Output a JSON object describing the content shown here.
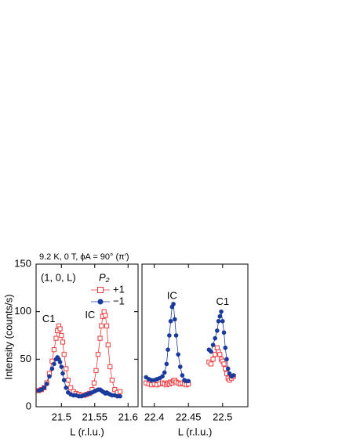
{
  "chart_data": [
    {
      "type": "line",
      "title": "9.2 K,  0 T,  ϕA = 90° (π′)",
      "ylabel": "Intensity  (counts/s)",
      "xlabel": "L  (r.l.u.)",
      "legend_title": "P₂",
      "legend": "upper right",
      "xlim": [
        21.462,
        21.615
      ],
      "xticks": [
        21.5,
        21.55,
        21.6
      ],
      "ylim": [
        0,
        150
      ],
      "yticks": [
        0,
        50,
        100,
        150
      ],
      "annotations": [
        {
          "text": "(1, 0, L)",
          "x": 21.469,
          "y": 135
        },
        {
          "text": "C1",
          "x": 21.481,
          "y": 92
        },
        {
          "text": "IC",
          "x": 21.543,
          "y": 96
        }
      ],
      "x": [
        21.466,
        21.47,
        21.474,
        21.478,
        21.482,
        21.486,
        21.489,
        21.492,
        21.494,
        21.496,
        21.498,
        21.5,
        21.502,
        21.504,
        21.507,
        21.51,
        21.514,
        21.518,
        21.522,
        21.526,
        21.53,
        21.534,
        21.538,
        21.542,
        21.546,
        21.549,
        21.552,
        21.555,
        21.558,
        21.56,
        21.562,
        21.564,
        21.566,
        21.568,
        21.57,
        21.573,
        21.576,
        21.58,
        21.584,
        21.588
      ],
      "series": [
        {
          "name": "+1",
          "color": "#e8393c",
          "marker": "open-square",
          "values": [
            17,
            18,
            20,
            25,
            35,
            48,
            60,
            72,
            80,
            85,
            82,
            75,
            68,
            55,
            40,
            28,
            20,
            16,
            14,
            13,
            12,
            12,
            13,
            14,
            18,
            25,
            38,
            55,
            72,
            85,
            95,
            100,
            96,
            85,
            65,
            42,
            28,
            18,
            15,
            16
          ]
        },
        {
          "name": "−1",
          "color": "#1a3a9c",
          "marker": "filled-circle",
          "values": [
            17,
            18,
            20,
            24,
            32,
            40,
            45,
            50,
            52,
            50,
            47,
            42,
            35,
            28,
            20,
            15,
            13,
            12,
            12,
            11,
            11,
            12,
            13,
            14,
            15,
            16,
            17,
            18,
            18,
            17,
            16,
            15,
            14,
            15,
            14,
            13,
            12,
            12,
            11,
            11
          ]
        }
      ]
    },
    {
      "type": "line",
      "xlabel": "L  (r.l.u.)",
      "xlim": [
        22.382,
        22.537
      ],
      "xticks": [
        22.4,
        22.45,
        22.5
      ],
      "ylim": [
        0,
        150
      ],
      "annotations": [
        {
          "text": "IC",
          "x": 22.426,
          "y": 116
        },
        {
          "text": "C1",
          "x": 22.5,
          "y": 110
        }
      ],
      "x": [
        22.388,
        22.392,
        22.396,
        22.4,
        22.404,
        22.408,
        22.412,
        22.415,
        22.418,
        22.42,
        22.422,
        22.424,
        22.426,
        22.428,
        22.43,
        22.432,
        22.435,
        22.438,
        22.441,
        22.444,
        22.447,
        22.45,
        22.465,
        22.48,
        22.483,
        22.486,
        22.489,
        22.492,
        22.494,
        22.496,
        22.498,
        22.5,
        22.502,
        22.504,
        22.506,
        22.508,
        22.51,
        22.513,
        22.516
      ],
      "series": [
        {
          "name": "+1",
          "color": "#e8393c",
          "marker": "open-square",
          "values": [
            25,
            24,
            23,
            24,
            23,
            24,
            25,
            24,
            23,
            25,
            24,
            26,
            25,
            27,
            28,
            26,
            25,
            24,
            25,
            24,
            23,
            24,
            null,
            47,
            45,
            50,
            55,
            62,
            58,
            55,
            50,
            48,
            45,
            40,
            35,
            30,
            28,
            30,
            32
          ]
        },
        {
          "name": "−1",
          "color": "#1a3a9c",
          "marker": "filled-circle",
          "values": [
            31,
            29,
            28,
            28,
            29,
            30,
            32,
            36,
            45,
            60,
            75,
            90,
            105,
            108,
            92,
            75,
            55,
            42,
            33,
            28,
            27,
            27,
            null,
            60,
            58,
            65,
            72,
            80,
            90,
            95,
            100,
            90,
            78,
            62,
            50,
            40,
            35,
            32,
            33
          ]
        }
      ]
    }
  ]
}
